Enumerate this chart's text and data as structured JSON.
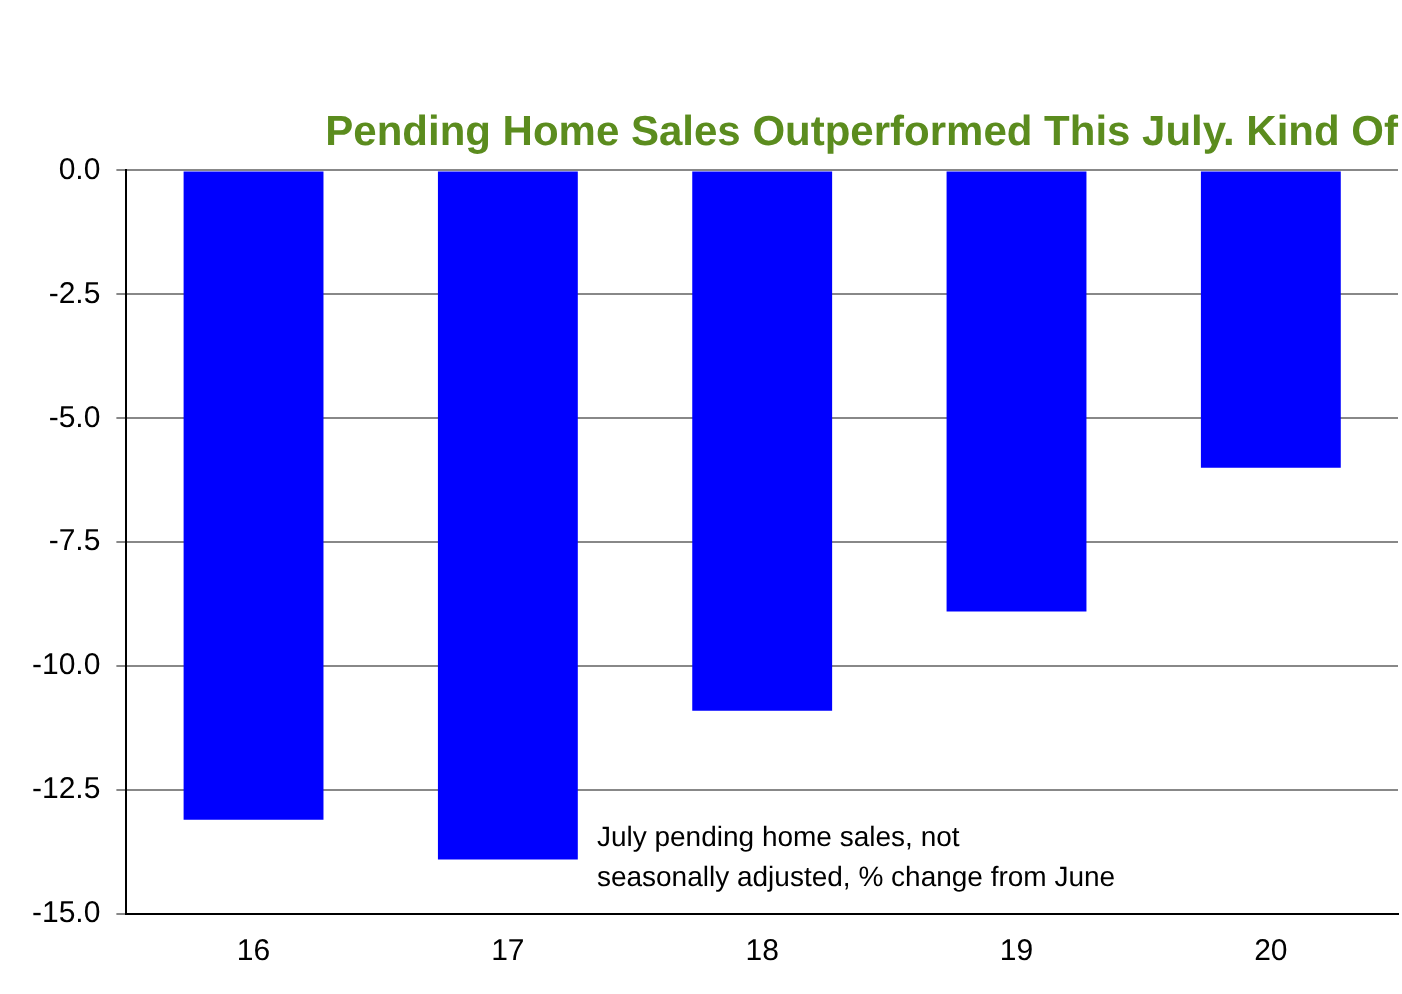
{
  "chart_data": {
    "type": "bar",
    "title": "Pending Home Sales Outperformed This July. Kind Of",
    "categories": [
      "16",
      "17",
      "18",
      "19",
      "20"
    ],
    "values": [
      -13.1,
      -13.9,
      -10.9,
      -8.9,
      -6.0
    ],
    "color": "#0000ff",
    "ylim": [
      -15,
      0
    ],
    "yticks": [
      {
        "value": -15,
        "label": "-15.0"
      },
      {
        "value": -12.5,
        "label": "-12.5"
      },
      {
        "value": -10,
        "label": "-10.0"
      },
      {
        "value": -7.5,
        "label": "-7.5"
      },
      {
        "value": -5,
        "label": "-5.0"
      },
      {
        "value": -2.5,
        "label": "-2.5"
      },
      {
        "value": 0,
        "label": "0.0"
      }
    ],
    "grid": "y",
    "legend": false,
    "annotations": [
      "July pending home sales, not\nseasonally adjusted, % change from June"
    ]
  }
}
